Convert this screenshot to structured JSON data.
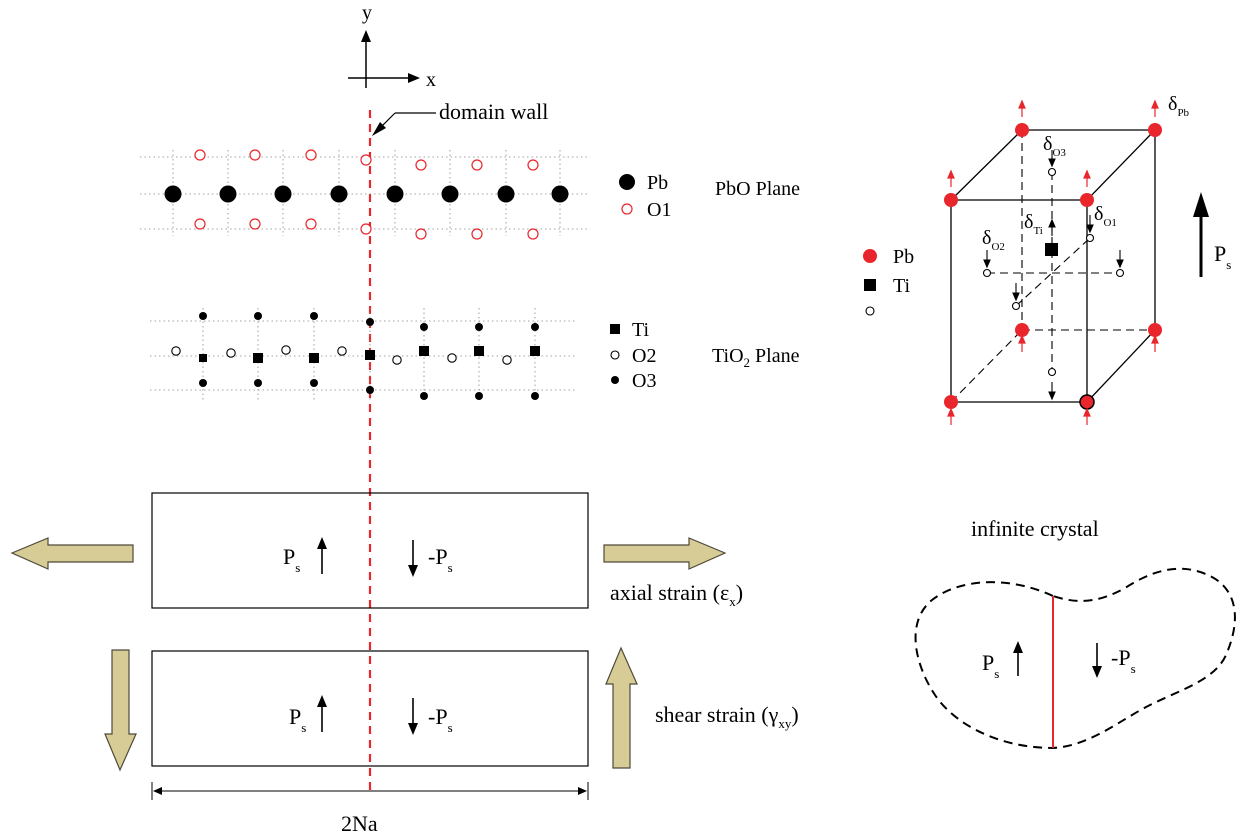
{
  "axes": {
    "x_label": "x",
    "y_label": "y"
  },
  "domain_wall_label": "domain wall",
  "pbo_plane": {
    "label": "PbO Plane",
    "legend": [
      {
        "symbol": "filled-circle-large",
        "label": "Pb"
      },
      {
        "symbol": "open-circle-red",
        "label": "O1"
      }
    ]
  },
  "tio2_plane": {
    "label_main": "TiO",
    "label_sub": "2",
    "label_tail": " Plane",
    "legend": [
      {
        "symbol": "filled-square",
        "label": "Ti"
      },
      {
        "symbol": "open-circle",
        "label": "O2"
      },
      {
        "symbol": "filled-circle-small",
        "label": "O3"
      }
    ]
  },
  "strain_boxes": {
    "axial": {
      "label": "axial strain (",
      "symbol": "ε",
      "sub": "x",
      "close": ")"
    },
    "shear": {
      "label": "shear strain (",
      "symbol": "γ",
      "sub": "xy",
      "close": ")"
    },
    "width_label": "2Na"
  },
  "polarization": {
    "p": "P",
    "p_sub": "s",
    "neg_p": "-P",
    "neg_p_sub": "s"
  },
  "unit_cell": {
    "legend": [
      {
        "symbol": "red-circle",
        "label": "Pb"
      },
      {
        "symbol": "filled-square",
        "label": "Ti"
      },
      {
        "symbol": "open-circle",
        "label": ""
      }
    ],
    "labels": [
      {
        "main": "δ",
        "sub": "Pb"
      },
      {
        "main": "δ",
        "sub": "O3"
      },
      {
        "main": "δ",
        "sub": "Ti"
      },
      {
        "main": "δ",
        "sub": "O1"
      },
      {
        "main": "δ",
        "sub": "O2"
      }
    ],
    "ps_main": "P",
    "ps_sub": "s"
  },
  "infinite_crystal": {
    "title": "infinite crystal"
  },
  "colors": {
    "red": "#e8262c",
    "black": "#000000",
    "arrow_fill": "#d8cc96",
    "arrow_stroke": "#4d4a3a",
    "grid": "#888888"
  }
}
